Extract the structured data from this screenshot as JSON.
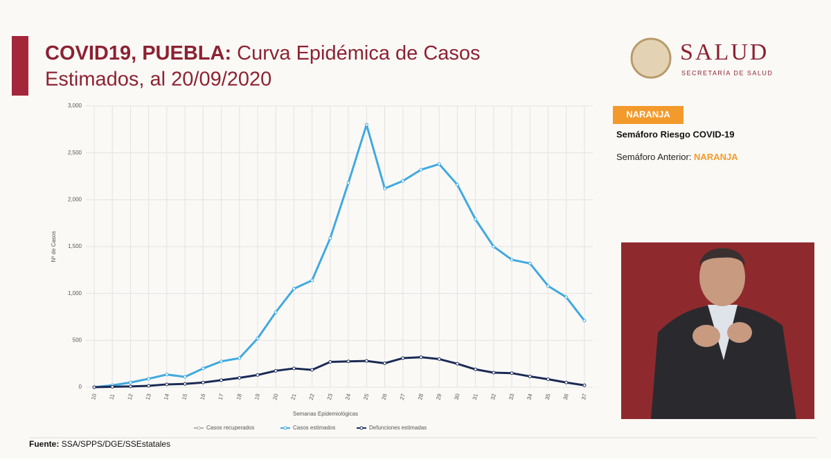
{
  "header": {
    "title_bold": "COVID19, PUEBLA:",
    "title_rest": "Curva Epidémica de Casos",
    "title_line2": "Estimados, al 20/09/2020",
    "logo": "SALUD",
    "logo_sub": "SECRETARÍA DE SALUD"
  },
  "panel": {
    "badge": "NARANJA",
    "risk": "Semáforo Riesgo COVID-19",
    "previous_label": "Semáforo Anterior:",
    "previous_value": "NARANJA"
  },
  "footer": {
    "label": "Fuente:",
    "source": "SSA/SPPS/DGE/SSEstatales"
  },
  "chart_data": {
    "type": "line",
    "ylabel": "Nº de Casos",
    "xlabel": "Semanas Epidemiológicas",
    "categories": [
      "10",
      "11",
      "12",
      "13",
      "14",
      "15",
      "16",
      "17",
      "18",
      "19",
      "20",
      "21",
      "22",
      "23",
      "24",
      "25",
      "26",
      "27",
      "28",
      "29",
      "30",
      "31",
      "32",
      "33",
      "34",
      "35",
      "36",
      "37"
    ],
    "series": [
      {
        "name": "Casos recuperados",
        "color": "#b0b0b0",
        "values": [
          null,
          null,
          null,
          null,
          null,
          null,
          null,
          null,
          null,
          null,
          null,
          null,
          null,
          null,
          null,
          null,
          null,
          null,
          null,
          null,
          null,
          null,
          null,
          null,
          null,
          null,
          null,
          null
        ]
      },
      {
        "name": "Casos estimados",
        "color": "#3fa9e0",
        "values": [
          0,
          20,
          50,
          90,
          135,
          110,
          200,
          275,
          310,
          520,
          800,
          1050,
          1140,
          1590,
          2180,
          2800,
          2120,
          2200,
          2320,
          2380,
          2160,
          1790,
          1500,
          1360,
          1320,
          1080,
          960,
          710
        ]
      },
      {
        "name": "Defunciones estimadas",
        "color": "#1a2a55",
        "values": [
          0,
          5,
          8,
          15,
          30,
          35,
          50,
          75,
          100,
          130,
          175,
          200,
          185,
          270,
          275,
          280,
          255,
          310,
          320,
          300,
          250,
          190,
          155,
          150,
          115,
          85,
          50,
          20
        ]
      }
    ],
    "ylim": [
      0,
      3000
    ],
    "yticks": [
      0,
      500,
      {
        "value": 1000,
        "label": "1,000"
      },
      {
        "value": 1500,
        "label": "1,500"
      },
      {
        "value": 2000,
        "label": "2,000"
      },
      {
        "value": 2500,
        "label": "2,500"
      },
      {
        "value": 3000,
        "label": "3,000"
      }
    ],
    "grid": true
  }
}
